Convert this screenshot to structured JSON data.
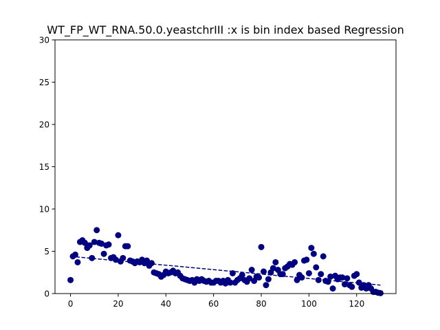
{
  "chart_data": {
    "type": "scatter",
    "title": "WT_FP_WT_RNA.50.0.yeastchrIII :x is bin index based Regression",
    "xlabel": "",
    "ylabel": "",
    "xlim": [
      -6.5,
      136.5
    ],
    "ylim": [
      0,
      30
    ],
    "x_ticks": [
      0,
      20,
      40,
      60,
      80,
      100,
      120
    ],
    "y_ticks": [
      0,
      5,
      10,
      15,
      20,
      25,
      30
    ],
    "grid": false,
    "colors": {
      "points": "#000080",
      "regression": "#000080"
    },
    "series": [
      {
        "style": "scatter",
        "x": [
          0,
          1,
          2,
          3,
          4,
          5,
          6,
          7,
          8,
          9,
          10,
          11,
          12,
          13,
          14,
          15,
          16,
          17,
          18,
          19,
          20,
          21,
          22,
          23,
          24,
          25,
          26,
          27,
          28,
          29,
          30,
          31,
          32,
          33,
          34,
          35,
          36,
          37,
          38,
          39,
          40,
          41,
          42,
          43,
          44,
          45,
          46,
          47,
          48,
          49,
          50,
          51,
          52,
          53,
          54,
          55,
          56,
          57,
          58,
          59,
          60,
          61,
          62,
          63,
          64,
          65,
          66,
          67,
          68,
          69,
          70,
          71,
          72,
          73,
          74,
          75,
          76,
          77,
          78,
          79,
          80,
          81,
          82,
          83,
          84,
          85,
          86,
          87,
          88,
          89,
          90,
          91,
          92,
          93,
          94,
          95,
          96,
          97,
          98,
          99,
          100,
          101,
          102,
          103,
          104,
          105,
          106,
          107,
          108,
          109,
          110,
          111,
          112,
          113,
          114,
          115,
          116,
          117,
          118,
          119,
          120,
          121,
          122,
          123,
          124,
          125,
          126,
          127,
          128,
          129,
          130
        ],
        "y": [
          1.6,
          4.4,
          4.6,
          3.7,
          6.1,
          6.3,
          6.0,
          5.4,
          5.7,
          4.2,
          6.1,
          7.5,
          6.0,
          5.9,
          4.7,
          5.7,
          5.8,
          4.2,
          4.3,
          4.0,
          6.9,
          3.8,
          4.2,
          5.6,
          5.6,
          3.9,
          3.8,
          3.6,
          3.8,
          3.7,
          4.0,
          3.6,
          3.9,
          3.3,
          3.6,
          2.5,
          2.4,
          2.3,
          2.0,
          2.2,
          2.6,
          2.4,
          2.5,
          2.7,
          2.4,
          2.5,
          2.1,
          1.8,
          1.7,
          1.6,
          1.5,
          1.6,
          1.3,
          1.7,
          1.5,
          1.7,
          1.5,
          1.4,
          1.5,
          1.3,
          1.3,
          1.5,
          1.5,
          1.3,
          1.5,
          1.2,
          1.6,
          1.3,
          2.4,
          1.3,
          1.6,
          1.8,
          2.2,
          1.6,
          1.4,
          1.8,
          2.8,
          1.5,
          2.0,
          1.9,
          5.5,
          2.6,
          1.0,
          1.7,
          2.5,
          3.0,
          3.7,
          2.8,
          2.3,
          2.3,
          3.0,
          3.2,
          3.5,
          3.4,
          3.7,
          1.6,
          2.2,
          1.9,
          3.9,
          4.0,
          2.4,
          5.4,
          4.7,
          3.1,
          1.6,
          2.3,
          4.4,
          1.5,
          1.4,
          2.0,
          0.6,
          2.1,
          1.7,
          1.9,
          1.9,
          1.1,
          1.8,
          1.0,
          0.8,
          2.1,
          2.3,
          1.3,
          0.7,
          1.0,
          0.6,
          1.0,
          0.6,
          0.2,
          0.2,
          0.1,
          0.05
        ]
      },
      {
        "style": "dashed-line",
        "x": [
          0,
          130
        ],
        "y": [
          4.4,
          1.0
        ]
      }
    ]
  }
}
